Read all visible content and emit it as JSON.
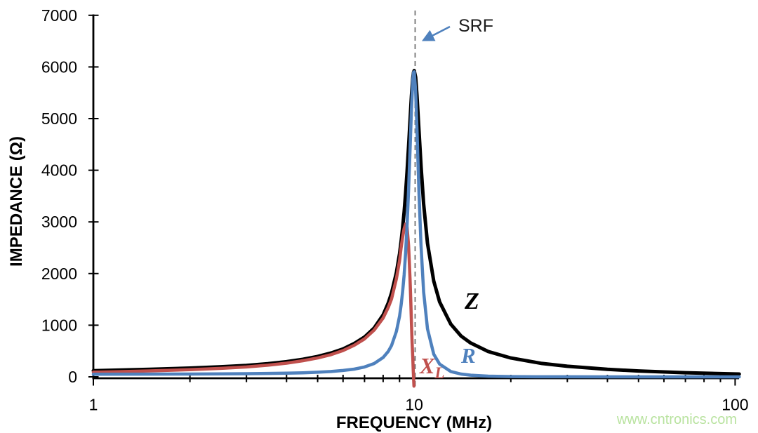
{
  "watermark": {
    "text": "www.cntronics.com",
    "color": "#b9e3a0"
  },
  "colors": {
    "axis": "#000000",
    "z_curve": "#000000",
    "r_curve": "#4F81BD",
    "xl_curve": "#C0504D",
    "srf_dash": "#808080",
    "arrow": "#4F81BD"
  },
  "chart_data": {
    "type": "line",
    "title": "",
    "xlabel": "FREQUENCY (MHz)",
    "ylabel": "IMPEDANCE (Ω)",
    "x_scale": "log",
    "xlim": [
      1,
      100
    ],
    "ylim": [
      0,
      7000
    ],
    "x_ticks": [
      1,
      10,
      100
    ],
    "x_minor_ticks": [
      2,
      3,
      4,
      5,
      6,
      7,
      8,
      9,
      20,
      30,
      40,
      50,
      60,
      70,
      80,
      90
    ],
    "y_ticks": [
      0,
      1000,
      2000,
      3000,
      4000,
      5000,
      6000,
      7000
    ],
    "grid": false,
    "legend_position": "labels-on-curves",
    "annotations": {
      "srf": {
        "label": "SRF",
        "frequency_mhz": 10
      }
    },
    "series": [
      {
        "name": "Z",
        "label": "Z",
        "color": "#000000",
        "peak": {
          "frequency_mhz": 10,
          "impedance_ohm": 5930
        },
        "points": [
          [
            1,
            120
          ],
          [
            1.2,
            130
          ],
          [
            1.5,
            145
          ],
          [
            2,
            170
          ],
          [
            2.5,
            195
          ],
          [
            3,
            222
          ],
          [
            3.5,
            256
          ],
          [
            4,
            295
          ],
          [
            4.5,
            340
          ],
          [
            5,
            395
          ],
          [
            5.5,
            460
          ],
          [
            6,
            540
          ],
          [
            6.5,
            645
          ],
          [
            7,
            770
          ],
          [
            7.5,
            945
          ],
          [
            8,
            1200
          ],
          [
            8.3,
            1430
          ],
          [
            8.5,
            1625
          ],
          [
            8.8,
            2020
          ],
          [
            9,
            2385
          ],
          [
            9.1,
            2620
          ],
          [
            9.2,
            2880
          ],
          [
            9.3,
            3190
          ],
          [
            9.4,
            3555
          ],
          [
            9.5,
            3975
          ],
          [
            9.6,
            4450
          ],
          [
            9.7,
            4955
          ],
          [
            9.8,
            5435
          ],
          [
            9.9,
            5795
          ],
          [
            9.95,
            5895
          ],
          [
            10,
            5930
          ],
          [
            10.1,
            5800
          ],
          [
            10.2,
            5450
          ],
          [
            10.35,
            4760
          ],
          [
            10.5,
            4080
          ],
          [
            10.7,
            3345
          ],
          [
            11,
            2585
          ],
          [
            11.5,
            1855
          ],
          [
            12,
            1450
          ],
          [
            13,
            1020
          ],
          [
            14,
            790
          ],
          [
            15,
            655
          ],
          [
            17,
            490
          ],
          [
            20,
            365
          ],
          [
            25,
            260
          ],
          [
            30,
            205
          ],
          [
            40,
            146
          ],
          [
            50,
            114
          ],
          [
            70,
            80
          ],
          [
            100,
            56
          ],
          [
            103,
            54
          ]
        ]
      },
      {
        "name": "XL",
        "label": "X",
        "label_subscript": "L",
        "color": "#C0504D",
        "peak": {
          "frequency_mhz": 9.4,
          "impedance_ohm": 2960
        },
        "points": [
          [
            1,
            90
          ],
          [
            1.2,
            100
          ],
          [
            1.5,
            115
          ],
          [
            2,
            140
          ],
          [
            2.5,
            165
          ],
          [
            3,
            192
          ],
          [
            3.5,
            226
          ],
          [
            4,
            265
          ],
          [
            4.5,
            312
          ],
          [
            5,
            365
          ],
          [
            5.5,
            430
          ],
          [
            6,
            510
          ],
          [
            6.5,
            612
          ],
          [
            7,
            735
          ],
          [
            7.5,
            905
          ],
          [
            8,
            1140
          ],
          [
            8.3,
            1345
          ],
          [
            8.5,
            1510
          ],
          [
            8.8,
            1900
          ],
          [
            9,
            2250
          ],
          [
            9.1,
            2500
          ],
          [
            9.2,
            2700
          ],
          [
            9.3,
            2870
          ],
          [
            9.4,
            2960
          ],
          [
            9.5,
            2900
          ],
          [
            9.6,
            2550
          ],
          [
            9.65,
            2250
          ],
          [
            9.7,
            1900
          ],
          [
            9.75,
            1500
          ],
          [
            9.8,
            1050
          ],
          [
            9.85,
            650
          ],
          [
            9.9,
            350
          ],
          [
            9.93,
            120
          ],
          [
            9.96,
            -60
          ],
          [
            9.98,
            -180
          ]
        ]
      },
      {
        "name": "R",
        "label": "R",
        "color": "#4F81BD",
        "peak": {
          "frequency_mhz": 10,
          "impedance_ohm": 5905
        },
        "points": [
          [
            1,
            52
          ],
          [
            1.5,
            53
          ],
          [
            2,
            55
          ],
          [
            2.5,
            58
          ],
          [
            3,
            61
          ],
          [
            3.5,
            66
          ],
          [
            4,
            72
          ],
          [
            4.5,
            79
          ],
          [
            5,
            90
          ],
          [
            5.5,
            103
          ],
          [
            6,
            123
          ],
          [
            6.5,
            150
          ],
          [
            7,
            192
          ],
          [
            7.5,
            258
          ],
          [
            8,
            375
          ],
          [
            8.3,
            493
          ],
          [
            8.5,
            608
          ],
          [
            8.8,
            880
          ],
          [
            9,
            1175
          ],
          [
            9.1,
            1390
          ],
          [
            9.2,
            1640
          ],
          [
            9.3,
            1972
          ],
          [
            9.4,
            2395
          ],
          [
            9.5,
            2936
          ],
          [
            9.6,
            3603
          ],
          [
            9.7,
            4379
          ],
          [
            9.8,
            5165
          ],
          [
            9.9,
            5753
          ],
          [
            9.95,
            5895
          ],
          [
            10,
            5905
          ],
          [
            10.1,
            5534
          ],
          [
            10.2,
            4798
          ],
          [
            10.35,
            3551
          ],
          [
            10.5,
            2536
          ],
          [
            10.7,
            1643
          ],
          [
            11,
            929
          ],
          [
            11.5,
            439
          ],
          [
            12,
            246
          ],
          [
            13,
            103
          ],
          [
            14,
            54
          ],
          [
            15,
            32
          ],
          [
            17,
            14
          ],
          [
            20,
            6
          ],
          [
            25,
            2
          ],
          [
            30,
            1
          ],
          [
            40,
            0.5
          ],
          [
            50,
            0.3
          ],
          [
            70,
            0.2
          ],
          [
            100,
            0.1
          ],
          [
            103,
            0.1
          ]
        ]
      }
    ]
  }
}
